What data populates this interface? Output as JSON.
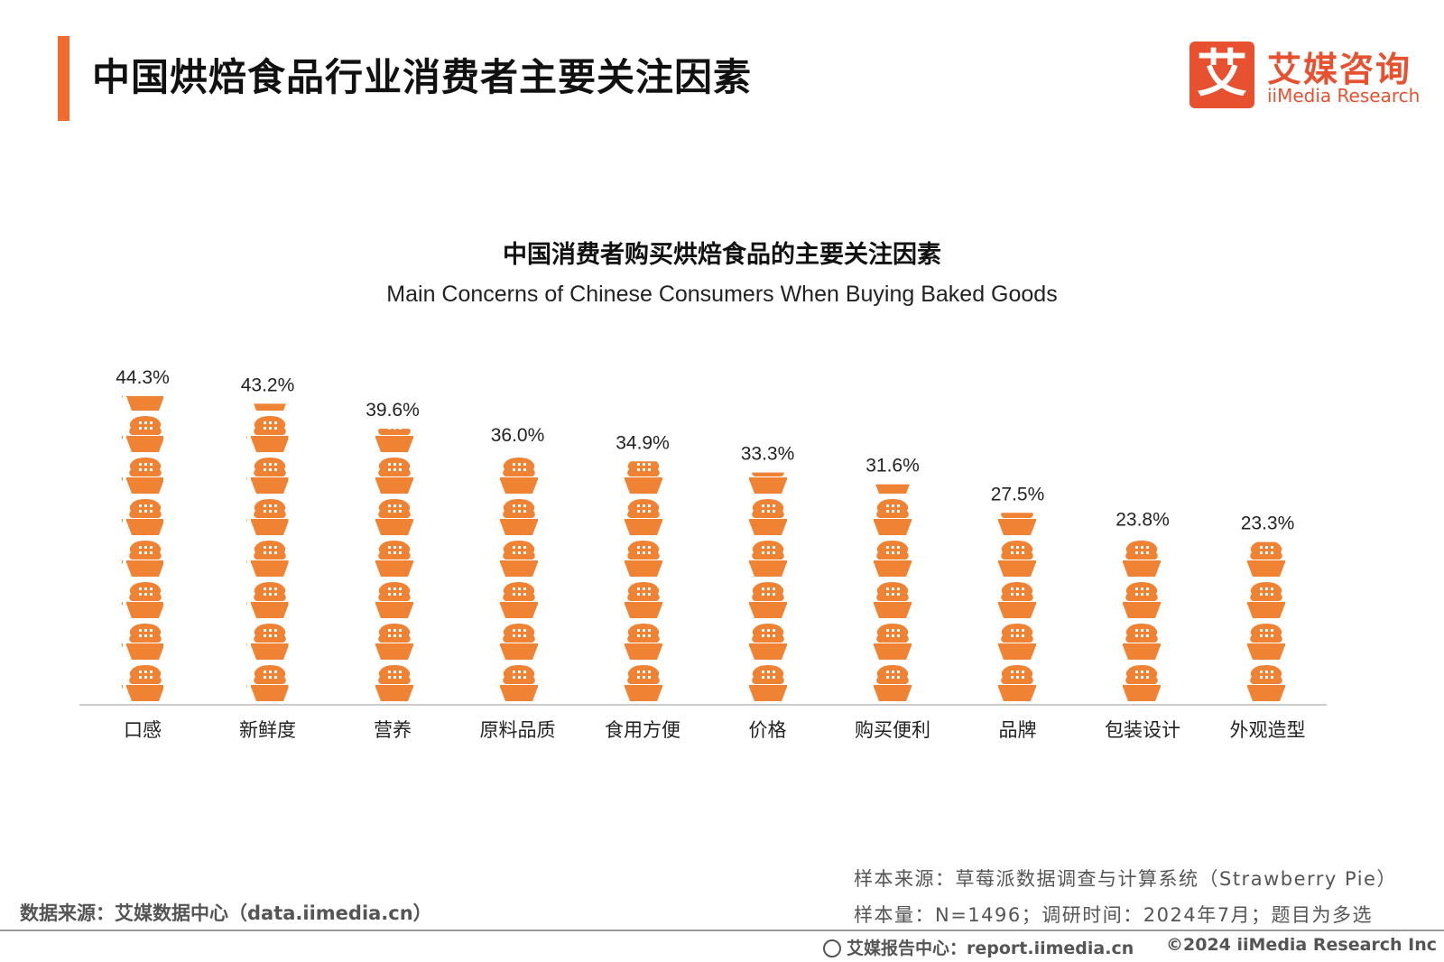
{
  "header": {
    "title": "中国烘焙食品行业消费者主要关注因素",
    "logo_cn": "艾媒咨询",
    "logo_en": "iiMedia Research",
    "logo_mark": "艾"
  },
  "colors": {
    "accent": "#F26A2E",
    "bar": "#F08234",
    "logo": "#E8512F"
  },
  "chart_data": {
    "type": "bar",
    "title": "中国消费者购买烘焙食品的主要关注因素",
    "subtitle": "Main Concerns of Chinese Consumers When Buying Baked Goods",
    "categories": [
      "口感",
      "新鲜度",
      "营养",
      "原料品质",
      "食用方便",
      "价格",
      "购买便利",
      "品牌",
      "包装设计",
      "外观造型"
    ],
    "values": [
      44.3,
      43.2,
      39.6,
      36.0,
      34.9,
      33.3,
      31.6,
      27.5,
      23.8,
      23.3
    ],
    "value_labels": [
      "44.3%",
      "43.2%",
      "39.6%",
      "36.0%",
      "34.9%",
      "33.3%",
      "31.6%",
      "27.5%",
      "23.8%",
      "23.3%"
    ],
    "unit": "%",
    "mark_style": "stacked bread-basket pictograph icons",
    "ylim": [
      0,
      46
    ],
    "grid": false,
    "legend": "none"
  },
  "notes": {
    "sample_source": "样本来源：草莓派数据调查与计算系统（Strawberry Pie）",
    "sample_size": "样本量：N=1496；调研时间：2024年7月；题目为多选"
  },
  "footer": {
    "data_source": "数据来源：艾媒数据中心（data.iimedia.cn）",
    "report_center": "艾媒报告中心：report.iimedia.cn",
    "copyright": "©2024 iiMedia Research Inc"
  }
}
